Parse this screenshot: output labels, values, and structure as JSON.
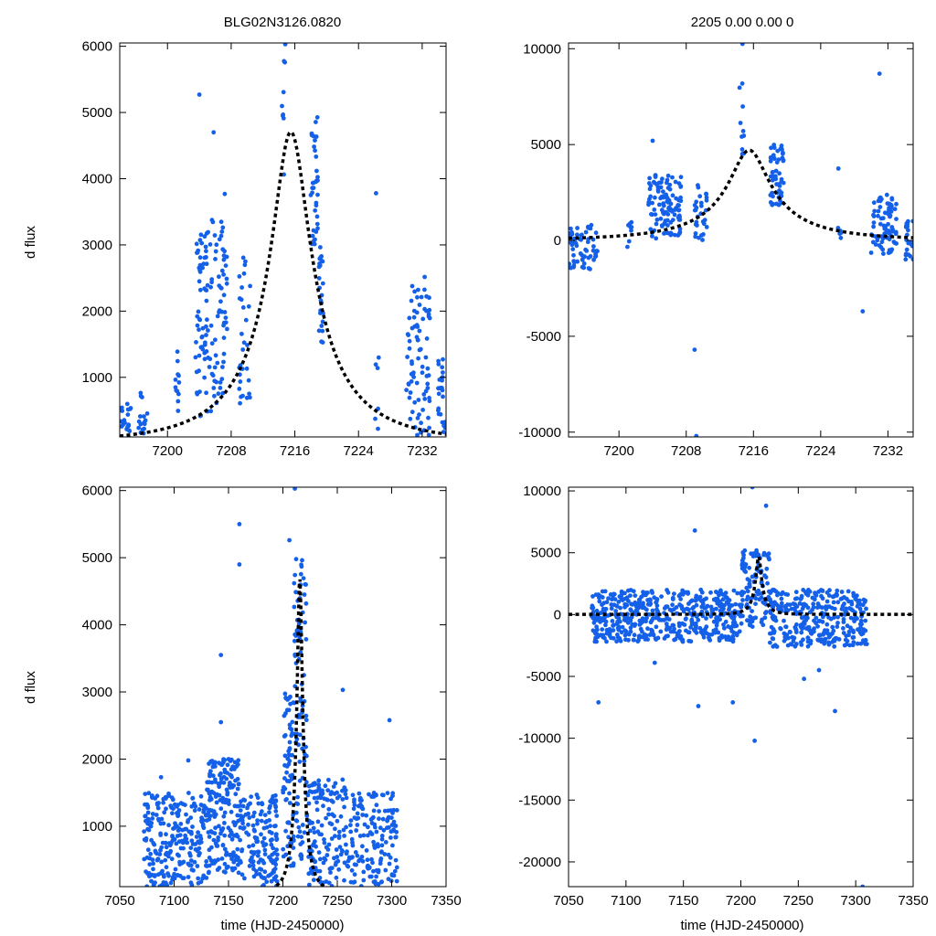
{
  "figure": {
    "title_left": "BLG02N3126.0820",
    "title_right": "2205  0.00  0.00  0",
    "ylabel": "d flux",
    "xlabel": "time (HJD-2450000)"
  },
  "colors": {
    "points": "#1560e8",
    "model": "#000000",
    "frame": "#000000"
  },
  "chart_data": [
    {
      "id": "top-left",
      "type": "scatter",
      "title": "BLG02N3126.0820",
      "xlabel": "",
      "ylabel": "d flux",
      "xlim": [
        7194,
        7235
      ],
      "ylim": [
        100,
        6050
      ],
      "xticks": [
        7200,
        7208,
        7216,
        7224,
        7232
      ],
      "yticks": [
        1000,
        2000,
        3000,
        4000,
        5000,
        6000
      ],
      "model": {
        "t0": 7215.5,
        "u0": 0.2,
        "tE": 12,
        "fs": 1150,
        "base": -1130
      },
      "clusters": [
        {
          "x0": 7194,
          "x1": 7195.5,
          "ymin": 100,
          "ymax": 600,
          "n": 18
        },
        {
          "x0": 7196,
          "x1": 7197.5,
          "ymin": 150,
          "ymax": 800,
          "n": 16
        },
        {
          "x0": 7201,
          "x1": 7201.5,
          "ymin": 100,
          "ymax": 1450,
          "n": 12
        },
        {
          "x0": 7203.5,
          "x1": 7205.5,
          "ymin": 400,
          "ymax": 3200,
          "n": 70
        },
        {
          "x0": 7205.5,
          "x1": 7207.5,
          "ymin": 600,
          "ymax": 3400,
          "n": 60
        },
        {
          "x0": 7209,
          "x1": 7210.5,
          "ymin": 500,
          "ymax": 2900,
          "n": 30
        },
        {
          "x0": 7214.3,
          "x1": 7214.9,
          "ymin": 4000,
          "ymax": 6020,
          "n": 8
        },
        {
          "x0": 7218,
          "x1": 7218.9,
          "ymin": 3000,
          "ymax": 5000,
          "n": 35
        },
        {
          "x0": 7219,
          "x1": 7219.6,
          "ymin": 1500,
          "ymax": 3000,
          "n": 25
        },
        {
          "x0": 7226,
          "x1": 7226.6,
          "ymin": 200,
          "ymax": 1300,
          "n": 6
        },
        {
          "x0": 7230,
          "x1": 7231.5,
          "ymin": 100,
          "ymax": 2400,
          "n": 40
        },
        {
          "x0": 7231.5,
          "x1": 7233,
          "ymin": 100,
          "ymax": 2600,
          "n": 40
        },
        {
          "x0": 7234,
          "x1": 7235,
          "ymin": 100,
          "ymax": 1350,
          "n": 25
        }
      ],
      "outliers": [
        {
          "x": 7204.0,
          "y": 5270
        },
        {
          "x": 7205.8,
          "y": 4700
        },
        {
          "x": 7207.2,
          "y": 3770
        },
        {
          "x": 7214.8,
          "y": 6030
        },
        {
          "x": 7226.2,
          "y": 3780
        }
      ]
    },
    {
      "id": "top-right",
      "type": "scatter",
      "title": "2205  0.00  0.00  0",
      "xlabel": "",
      "ylabel": "",
      "xlim": [
        7194,
        7235
      ],
      "ylim": [
        -10250,
        10300
      ],
      "xticks": [
        7200,
        7208,
        7216,
        7224,
        7232
      ],
      "yticks": [
        -10000,
        -5000,
        0,
        5000,
        10000
      ],
      "model": {
        "t0": 7215.5,
        "u0": 0.2,
        "tE": 12,
        "fs": 1150,
        "base": -1130
      },
      "clusters": [
        {
          "x0": 7194,
          "x1": 7197.5,
          "ymin": -1500,
          "ymax": 900,
          "n": 60
        },
        {
          "x0": 7201,
          "x1": 7201.5,
          "ymin": -400,
          "ymax": 1000,
          "n": 8
        },
        {
          "x0": 7203.5,
          "x1": 7207.5,
          "ymin": 100,
          "ymax": 3500,
          "n": 110
        },
        {
          "x0": 7209,
          "x1": 7210.5,
          "ymin": 0,
          "ymax": 3000,
          "n": 30
        },
        {
          "x0": 7214.3,
          "x1": 7214.9,
          "ymin": 4500,
          "ymax": 8300,
          "n": 10
        },
        {
          "x0": 7218,
          "x1": 7219.6,
          "ymin": 1800,
          "ymax": 5000,
          "n": 55
        },
        {
          "x0": 7226,
          "x1": 7226.6,
          "ymin": 0,
          "ymax": 1200,
          "n": 6
        },
        {
          "x0": 7230,
          "x1": 7233,
          "ymin": -700,
          "ymax": 2500,
          "n": 80
        },
        {
          "x0": 7234,
          "x1": 7235,
          "ymin": -1000,
          "ymax": 1300,
          "n": 25
        }
      ],
      "outliers": [
        {
          "x": 7214.7,
          "y": 10250
        },
        {
          "x": 7209.0,
          "y": -5700
        },
        {
          "x": 7209.2,
          "y": -10200
        },
        {
          "x": 7229.0,
          "y": -3700
        },
        {
          "x": 7231.0,
          "y": 8700
        },
        {
          "x": 7226.1,
          "y": 3750
        },
        {
          "x": 7204.0,
          "y": 5200
        }
      ]
    },
    {
      "id": "bottom-left",
      "type": "scatter",
      "title": "",
      "xlabel": "time (HJD-2450000)",
      "ylabel": "d flux",
      "xlim": [
        7050,
        7350
      ],
      "ylim": [
        100,
        6050
      ],
      "xticks": [
        7050,
        7100,
        7150,
        7200,
        7250,
        7300,
        7350
      ],
      "yticks": [
        1000,
        2000,
        3000,
        4000,
        5000,
        6000
      ],
      "model": {
        "t0": 7215.5,
        "u0": 0.2,
        "tE": 12,
        "fs": 1150,
        "base": -1130
      },
      "clusters": [
        {
          "x0": 7072,
          "x1": 7100,
          "ymin": 100,
          "ymax": 1500,
          "n": 130
        },
        {
          "x0": 7100,
          "x1": 7130,
          "ymin": 100,
          "ymax": 1500,
          "n": 120
        },
        {
          "x0": 7130,
          "x1": 7160,
          "ymin": 300,
          "ymax": 2000,
          "n": 190
        },
        {
          "x0": 7160,
          "x1": 7195,
          "ymin": 100,
          "ymax": 1500,
          "n": 150
        },
        {
          "x0": 7200,
          "x1": 7210,
          "ymin": 400,
          "ymax": 3000,
          "n": 70
        },
        {
          "x0": 7210,
          "x1": 7222,
          "ymin": 500,
          "ymax": 5000,
          "n": 90
        },
        {
          "x0": 7222,
          "x1": 7260,
          "ymin": 100,
          "ymax": 1700,
          "n": 150
        },
        {
          "x0": 7260,
          "x1": 7305,
          "ymin": 100,
          "ymax": 1500,
          "n": 160
        }
      ],
      "outliers": [
        {
          "x": 7160,
          "y": 5500
        },
        {
          "x": 7160,
          "y": 4900
        },
        {
          "x": 7143,
          "y": 3550
        },
        {
          "x": 7143,
          "y": 2550
        },
        {
          "x": 7211,
          "y": 6030
        },
        {
          "x": 7206,
          "y": 5260
        },
        {
          "x": 7255,
          "y": 3030
        },
        {
          "x": 7298,
          "y": 2580
        },
        {
          "x": 7088,
          "y": 1730
        },
        {
          "x": 7113,
          "y": 1980
        }
      ]
    },
    {
      "id": "bottom-right",
      "type": "scatter",
      "title": "",
      "xlabel": "time (HJD-2450000)",
      "ylabel": "",
      "xlim": [
        7050,
        7350
      ],
      "ylim": [
        -22000,
        10300
      ],
      "xticks": [
        7050,
        7100,
        7150,
        7200,
        7250,
        7300,
        7350
      ],
      "yticks": [
        -20000,
        -15000,
        -10000,
        -5000,
        0,
        5000,
        10000
      ],
      "model": {
        "t0": 7215.5,
        "u0": 0.2,
        "tE": 12,
        "fs": 1150,
        "base": -1130
      },
      "clusters": [
        {
          "x0": 7070,
          "x1": 7200,
          "ymin": -2200,
          "ymax": 2000,
          "n": 500
        },
        {
          "x0": 7200,
          "x1": 7225,
          "ymin": -1000,
          "ymax": 5200,
          "n": 110
        },
        {
          "x0": 7225,
          "x1": 7310,
          "ymin": -2600,
          "ymax": 2000,
          "n": 320
        }
      ],
      "outliers": [
        {
          "x": 7076,
          "y": -7100
        },
        {
          "x": 7163,
          "y": -7400
        },
        {
          "x": 7193,
          "y": -7100
        },
        {
          "x": 7212,
          "y": -10200
        },
        {
          "x": 7210,
          "y": 10300
        },
        {
          "x": 7222,
          "y": 8800
        },
        {
          "x": 7282,
          "y": -7800
        },
        {
          "x": 7306,
          "y": -22000
        },
        {
          "x": 7160,
          "y": 6800
        },
        {
          "x": 7255,
          "y": -5200
        },
        {
          "x": 7125,
          "y": -3900
        },
        {
          "x": 7268,
          "y": -4500
        }
      ]
    }
  ]
}
